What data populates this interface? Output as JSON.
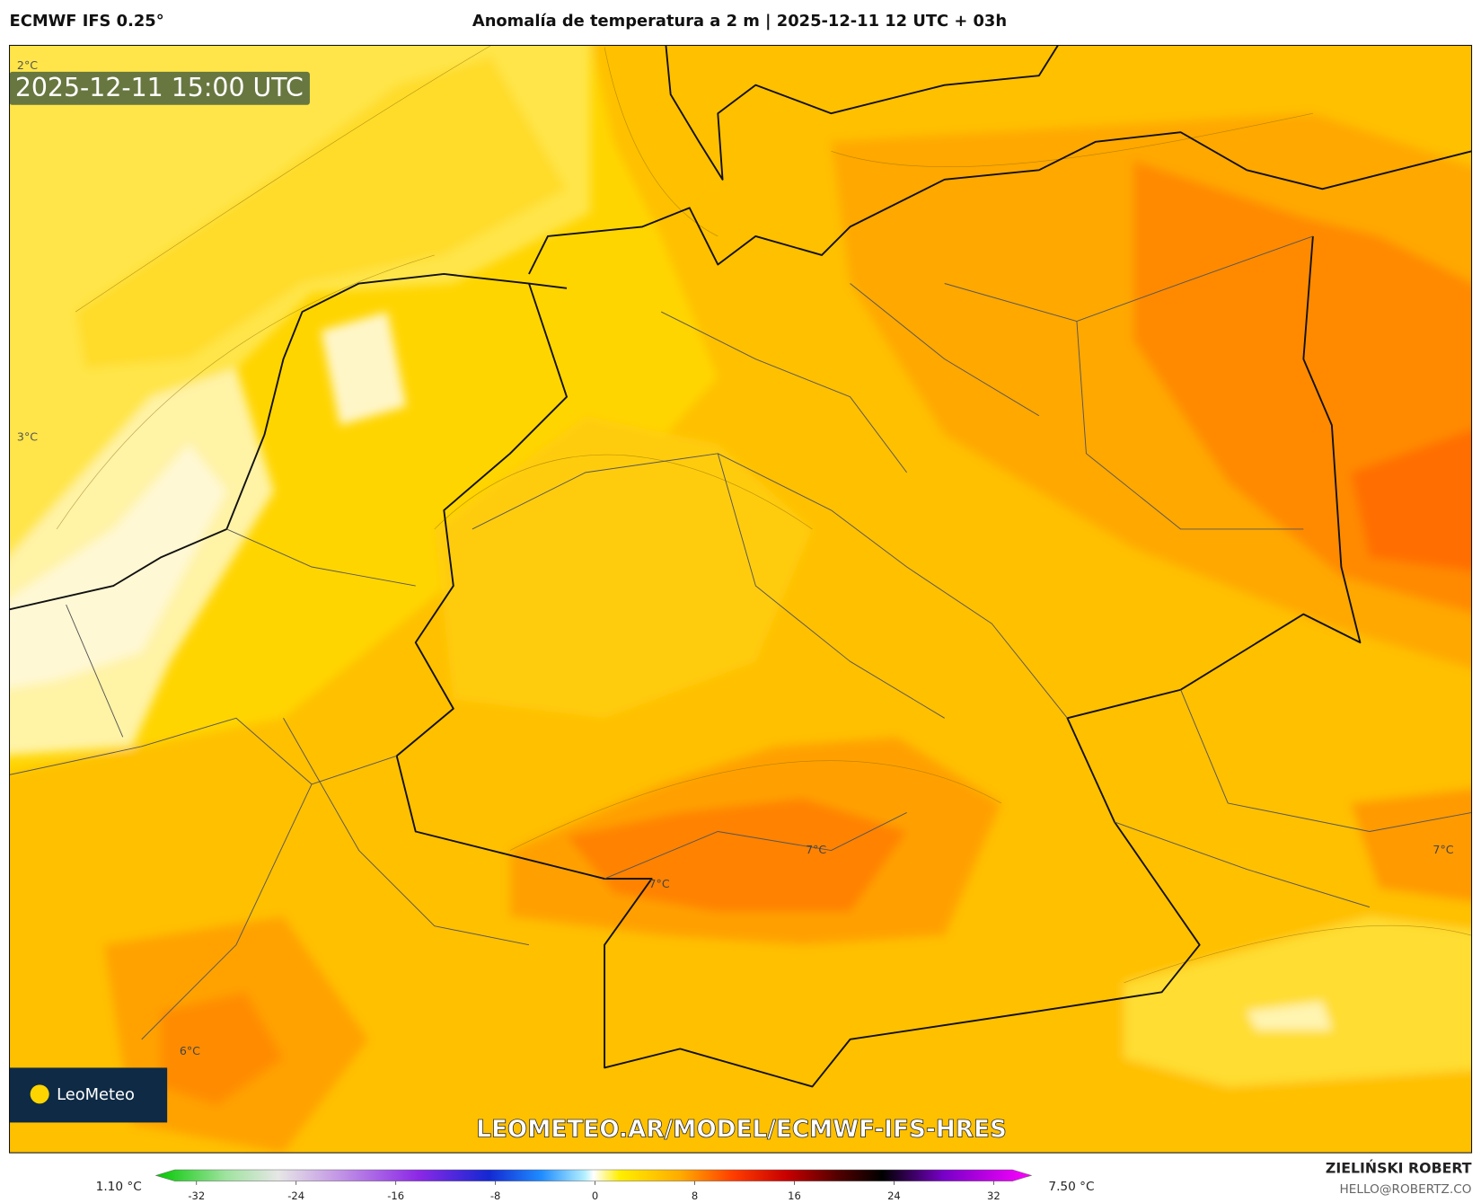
{
  "header": {
    "model": "ECMWF IFS 0.25°",
    "title": "Anomalía de temperatura a 2 m | 2025-12-11 12 UTC + 03h"
  },
  "map": {
    "timestamp": "2025-12-11 15:00 UTC",
    "contour_labels": [
      "2°C",
      "3°C",
      "7°C",
      "7°C",
      "7°C",
      "6°C"
    ],
    "logo": "LeoMeteo",
    "watermark": "LEOMETEO.AR/MODEL/ECMWF-IFS-HRES"
  },
  "colorbar": {
    "min_label": "1.10 °C",
    "max_label": "7.50 °C",
    "ticks": [
      -32,
      -24,
      -16,
      -8,
      0,
      8,
      16,
      24,
      32
    ]
  },
  "footer": {
    "author": "ZIELIŃSKI ROBERT",
    "email": "HELLO@ROBERTZ.CO"
  }
}
